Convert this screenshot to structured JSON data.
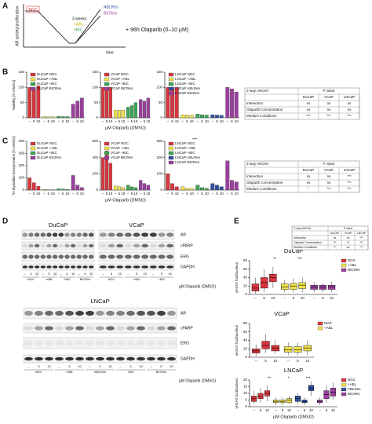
{
  "panel_labels": [
    "A",
    "B",
    "C",
    "D",
    "E"
  ],
  "schematic": {
    "y_label": "AR activity/proliferation",
    "x_label": "time",
    "start": "NGC",
    "duration": "3 weeks",
    "arms": [
      "+ABL",
      "+BIC"
    ],
    "resistant": [
      "ABLRes",
      "BICRes"
    ],
    "treatment": "+ 96h Olaparib (0–10 µM)"
  },
  "chart_data": [
    {
      "type": "bar",
      "y_label": "Viability [% DMSO]",
      "categories": [
        "–",
        "5",
        "10"
      ],
      "ylim": [
        0,
        150
      ],
      "yticks": [
        0,
        50,
        100,
        150
      ],
      "series": [
        {
          "name": "DuCaP NGC",
          "color": "#d9363e",
          "values": [
            100,
            95,
            105
          ]
        },
        {
          "name": "DuCaP +ABL",
          "color": "#f2e34c",
          "values": [
            4,
            3,
            3
          ]
        },
        {
          "name": "DuCaP +BIC",
          "color": "#3aa655",
          "values": [
            5,
            4,
            4
          ]
        },
        {
          "name": "DuCaP BICRes",
          "color": "#9b3f9e",
          "values": [
            45,
            55,
            65
          ]
        }
      ]
    },
    {
      "type": "bar",
      "categories": [
        "–",
        "5",
        "10"
      ],
      "ylim": [
        0,
        150
      ],
      "yticks": [
        0,
        50,
        100,
        150
      ],
      "x_label": "µM Olaparib (DMSO)",
      "series": [
        {
          "name": "VCaP NGC",
          "color": "#d9363e",
          "values": [
            100,
            95,
            100
          ]
        },
        {
          "name": "VCaP +ABL",
          "color": "#f2e34c",
          "values": [
            25,
            25,
            25
          ]
        },
        {
          "name": "VCaP +BIC",
          "color": "#3aa655",
          "values": [
            35,
            40,
            50
          ]
        },
        {
          "name": "VCaP BICRes",
          "color": "#9b3f9e",
          "values": [
            60,
            55,
            65
          ]
        }
      ]
    },
    {
      "type": "bar",
      "categories": [
        "–",
        "5",
        "10"
      ],
      "ylim": [
        0,
        150
      ],
      "yticks": [
        0,
        50,
        100,
        150
      ],
      "series": [
        {
          "name": "LNCaP NGC",
          "color": "#d9363e",
          "values": [
            100,
            100,
            100
          ]
        },
        {
          "name": "LNCaP +ABL",
          "color": "#f2e34c",
          "values": [
            10,
            9,
            8
          ]
        },
        {
          "name": "LNCaP +BIC",
          "color": "#3aa655",
          "values": [
            12,
            10,
            9
          ]
        },
        {
          "name": "LNCaP ABLRes",
          "color": "#2d4fa0",
          "values": [
            10,
            9,
            8
          ]
        },
        {
          "name": "LNCaP BICRes",
          "color": "#9b3f9e",
          "values": [
            100,
            95,
            85
          ]
        }
      ]
    },
    {
      "type": "bar",
      "y_label": "³H-thymidine incorporation [% DMSO]",
      "categories": [
        "–",
        "5",
        "10"
      ],
      "ylim": [
        0,
        400
      ],
      "yticks": [
        0,
        100,
        200,
        300,
        400
      ],
      "series": [
        {
          "name": "DuCaP NGC",
          "color": "#d9363e",
          "values": [
            100,
            60,
            30
          ]
        },
        {
          "name": "DuCaP +ABL",
          "color": "#f2e34c",
          "values": [
            5,
            3,
            3
          ]
        },
        {
          "name": "DuCaP +BIC",
          "color": "#3aa655",
          "values": [
            10,
            8,
            5
          ]
        },
        {
          "name": "DuCaP BICRes",
          "color": "#9b3f9e",
          "values": [
            120,
            40,
            20
          ]
        }
      ]
    },
    {
      "type": "bar",
      "categories": [
        "–",
        "5",
        "10"
      ],
      "ylim": [
        0,
        600
      ],
      "yticks": [
        0,
        200,
        400,
        600
      ],
      "x_label": "µM Olaparib (DMSO)",
      "series": [
        {
          "name": "VCaP NGC",
          "color": "#d9363e",
          "values": [
            400,
            480,
            330
          ]
        },
        {
          "name": "VCaP +ABL",
          "color": "#f2e34c",
          "values": [
            50,
            40,
            30
          ]
        },
        {
          "name": "VCaP +BIC",
          "color": "#3aa655",
          "values": [
            60,
            40,
            30
          ]
        },
        {
          "name": "VCaP BICRes",
          "color": "#9b3f9e",
          "values": [
            120,
            80,
            60
          ]
        }
      ]
    },
    {
      "type": "bar",
      "categories": [
        "–",
        "5",
        "10"
      ],
      "ylim": [
        0,
        300
      ],
      "yticks": [
        0,
        100,
        200,
        300
      ],
      "annotations": [
        "***"
      ],
      "series": [
        {
          "name": "LNCaP NGC",
          "color": "#d9363e",
          "values": [
            100,
            40,
            20
          ]
        },
        {
          "name": "LNCaP +ABL",
          "color": "#f2e34c",
          "values": [
            20,
            10,
            10
          ]
        },
        {
          "name": "LNCaP +BIC",
          "color": "#3aa655",
          "values": [
            30,
            15,
            10
          ]
        },
        {
          "name": "LNCaP ABLRes",
          "color": "#2d4fa0",
          "values": [
            40,
            30,
            20
          ]
        },
        {
          "name": "LNCaP BICRes",
          "color": "#9b3f9e",
          "values": [
            180,
            60,
            50
          ]
        }
      ]
    },
    {
      "type": "box",
      "title": "DuCaP",
      "y_label": "γH2AX foci/nucleus",
      "categories": [
        "–",
        "5",
        "10"
      ],
      "ylim": [
        0,
        80
      ],
      "yticks": [
        0,
        20,
        40,
        60,
        80
      ],
      "annotations": [
        "**",
        "***"
      ],
      "series": [
        {
          "name": "NGC",
          "color": "#d9363e",
          "boxes": [
            [
              2,
              8,
              15,
              25,
              40
            ],
            [
              5,
              15,
              28,
              40,
              60
            ],
            [
              15,
              30,
              40,
              48,
              65
            ]
          ]
        },
        {
          "name": "+ABL",
          "color": "#f2e34c",
          "boxes": [
            [
              5,
              12,
              18,
              25,
              35
            ],
            [
              5,
              12,
              20,
              26,
              38
            ],
            [
              5,
              14,
              22,
              28,
              40
            ]
          ]
        },
        {
          "name": "BICRes",
          "color": "#9b3f9e",
          "boxes": [
            [
              5,
              12,
              17,
              22,
              30
            ],
            [
              5,
              12,
              17,
              22,
              28
            ],
            [
              5,
              12,
              18,
              22,
              30
            ]
          ]
        }
      ]
    },
    {
      "type": "box",
      "title": "VCaP",
      "y_label": "γH2AX foci/nucleus",
      "categories": [
        "–",
        "5",
        "10"
      ],
      "ylim": [
        0,
        80
      ],
      "yticks": [
        0,
        20,
        40,
        60,
        80
      ],
      "series": [
        {
          "name": "NGC",
          "color": "#d9363e",
          "boxes": [
            [
              3,
              10,
              15,
              20,
              30
            ],
            [
              10,
              20,
              28,
              38,
              55
            ],
            [
              8,
              15,
              22,
              28,
              40
            ]
          ]
        },
        {
          "name": "+ABL",
          "color": "#f2e34c",
          "boxes": [
            [
              5,
              12,
              18,
              25,
              35
            ],
            [
              5,
              12,
              18,
              25,
              35
            ],
            [
              5,
              15,
              22,
              28,
              40
            ]
          ]
        }
      ]
    },
    {
      "type": "box",
      "title": "LNCaP",
      "y_label": "γH2AX foci/nucleus",
      "categories": [
        "–",
        "5",
        "10"
      ],
      "ylim": [
        0,
        20
      ],
      "yticks": [
        0,
        5,
        10,
        15,
        20
      ],
      "annotations": [
        "**",
        "*",
        "***"
      ],
      "x_label": "µM Olaparib (DMSO)",
      "series": [
        {
          "name": "NGC",
          "color": "#d9363e",
          "boxes": [
            [
              2,
              4,
              6,
              8,
              12
            ],
            [
              3,
              6,
              8,
              10,
              14
            ],
            [
              4,
              8,
              10,
              12,
              16
            ]
          ]
        },
        {
          "name": "+ABL",
          "color": "#f2e34c",
          "boxes": [
            [
              1,
              3,
              4,
              5,
              7
            ],
            [
              1,
              3,
              4,
              5,
              7
            ],
            [
              2,
              3,
              5,
              6,
              8
            ]
          ]
        },
        {
          "name": "ABLRes",
          "color": "#2d4fa0",
          "boxes": [
            [
              2,
              4,
              6,
              8,
              10
            ],
            [
              1,
              3,
              4,
              5,
              7
            ],
            [
              8,
              12,
              14,
              16,
              19
            ]
          ]
        },
        {
          "name": "BICRes",
          "color": "#9b3f9e",
          "boxes": [
            [
              1,
              3,
              4,
              5,
              7
            ],
            [
              3,
              6,
              9,
              12,
              16
            ],
            [
              5,
              8,
              11,
              14,
              18
            ]
          ]
        }
      ]
    }
  ],
  "anova_tables": [
    {
      "title": "2-way ANOVA",
      "p_header": "P value",
      "columns": [
        "DuCaP",
        "VCaP",
        "LNCaP"
      ],
      "rows": [
        [
          "Interaction",
          "ns",
          "ns",
          "ns"
        ],
        [
          "Olaparib Concentration",
          "ns",
          "ns",
          "ns"
        ],
        [
          "Medium Conditions",
          "***",
          "***",
          "***"
        ]
      ]
    },
    {
      "title": "2-way ANOVA",
      "p_header": "P value",
      "columns": [
        "DuCaP",
        "VCaP",
        "LNCaP"
      ],
      "rows": [
        [
          "Interaction",
          "ns",
          "ns",
          "***"
        ],
        [
          "Olaparib Concentration",
          "ns",
          "ns",
          "***"
        ],
        [
          "Medium Conditions",
          "*",
          "***",
          "***"
        ]
      ]
    },
    {
      "title": "2-way ANOVA",
      "p_header": "P value",
      "columns": [
        "DuCaP",
        "VCaP",
        "LNCaP"
      ],
      "rows": [
        [
          "Interaction",
          "ns",
          "ns",
          "***"
        ],
        [
          "Olaparib Concentration",
          "***",
          "***",
          "***"
        ],
        [
          "Medium Conditions",
          "***",
          "ns",
          "***"
        ]
      ]
    }
  ],
  "blots": {
    "cell_lines": [
      "DuCaP",
      "VCaP",
      "LNCaP"
    ],
    "markers": [
      "AR",
      "cPARP",
      "ERG",
      "GAPDH"
    ],
    "doses": [
      "–",
      "5",
      "10"
    ],
    "groups": [
      [
        "NGC",
        "+ABL",
        "+BIC",
        "BICRes"
      ],
      [
        "NGC",
        "+ABL",
        "+BIC"
      ],
      [
        "NGC",
        "+ABL",
        "ABLRes",
        "+BIC",
        "BICRes"
      ]
    ],
    "x_label": "µM Olaparib (DMSO)"
  }
}
